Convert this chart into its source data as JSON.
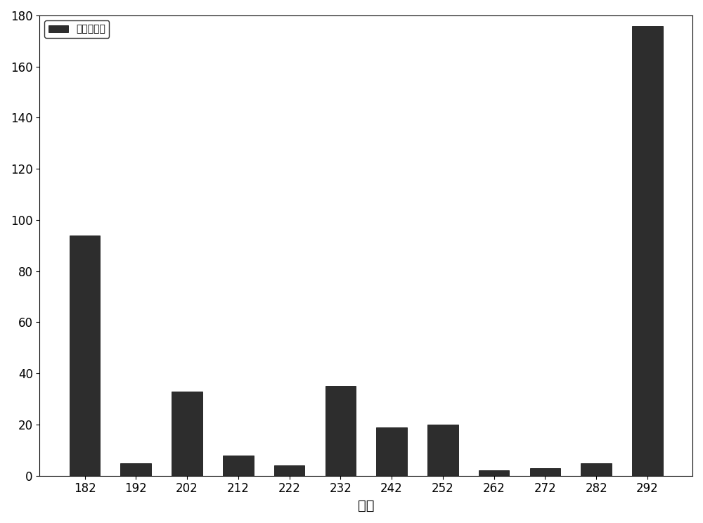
{
  "categories": [
    "182",
    "192",
    "202",
    "212",
    "222",
    "232",
    "242",
    "252",
    "262",
    "272",
    "282",
    "292"
  ],
  "values": [
    94,
    5,
    33,
    8,
    4,
    35,
    19,
    20,
    2,
    3,
    5,
    176
  ],
  "bar_color": "#2d2d2d",
  "bar_edge_color": "#000000",
  "xlabel": "负荷",
  "ylabel": "",
  "ylim": [
    0,
    180
  ],
  "yticks": [
    0,
    20,
    40,
    60,
    80,
    100,
    120,
    140,
    160,
    180
  ],
  "legend_label": "稳态点个数",
  "background_color": "#ffffff",
  "xlabel_fontsize": 14,
  "tick_fontsize": 12,
  "legend_fontsize": 13
}
